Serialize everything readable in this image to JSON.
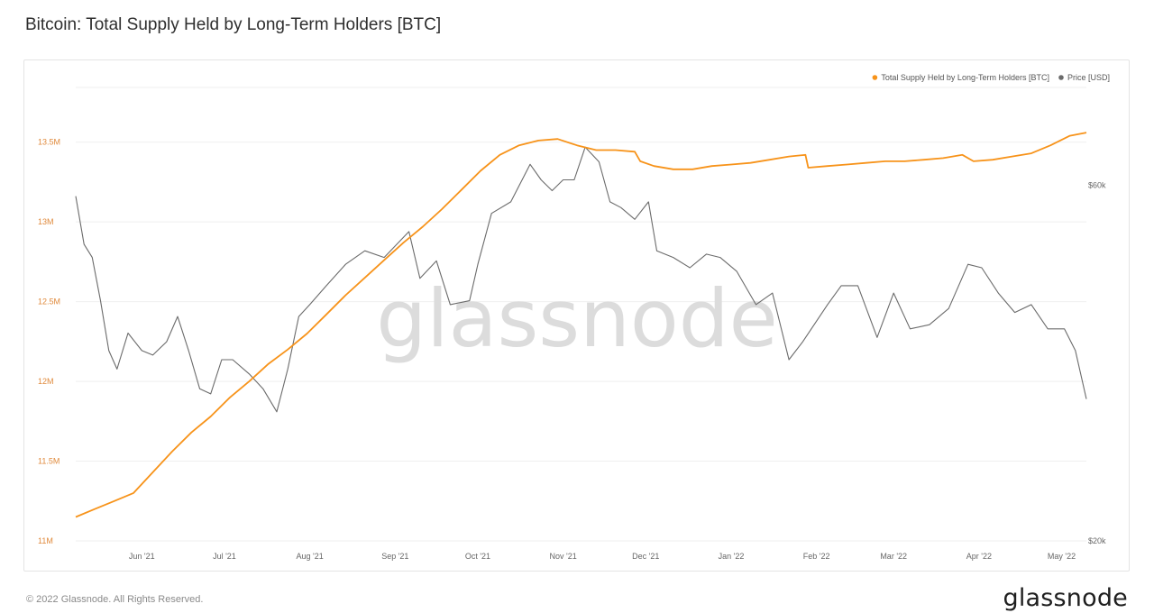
{
  "title": "Bitcoin: Total Supply Held by Long-Term Holders [BTC]",
  "copyright": "© 2022 Glassnode. All Rights Reserved.",
  "logo": "glassnode",
  "watermark": "glassnode",
  "colors": {
    "supply": "#f7931a",
    "price": "#6b6b6b",
    "grid": "#efefef",
    "left_axis": "#e08a3c",
    "right_axis": "#666666",
    "x_axis": "#666666"
  },
  "legend": {
    "placement": "top-right",
    "items": [
      {
        "label": "Total Supply Held by Long-Term Holders [BTC]",
        "color": "#f7931a"
      },
      {
        "label": "Price [USD]",
        "color": "#6b6b6b"
      }
    ]
  },
  "chart_data": {
    "type": "line",
    "x_range": [
      "2021-05-08",
      "2022-05-10"
    ],
    "x_ticks": [
      {
        "date": "2021-06-01",
        "label": "Jun '21"
      },
      {
        "date": "2021-07-01",
        "label": "Jul '21"
      },
      {
        "date": "2021-08-01",
        "label": "Aug '21"
      },
      {
        "date": "2021-09-01",
        "label": "Sep '21"
      },
      {
        "date": "2021-10-01",
        "label": "Oct '21"
      },
      {
        "date": "2021-11-01",
        "label": "Nov '21"
      },
      {
        "date": "2021-12-01",
        "label": "Dec '21"
      },
      {
        "date": "2022-01-01",
        "label": "Jan '22"
      },
      {
        "date": "2022-02-01",
        "label": "Feb '22"
      },
      {
        "date": "2022-03-01",
        "label": "Mar '22"
      },
      {
        "date": "2022-04-01",
        "label": "Apr '22"
      },
      {
        "date": "2022-05-01",
        "label": "May '22"
      }
    ],
    "y_left": {
      "range": [
        11000000,
        13600000
      ],
      "ticks": [
        {
          "value": 11000000,
          "label": "11M"
        },
        {
          "value": 11500000,
          "label": "11.5M"
        },
        {
          "value": 12000000,
          "label": "12M"
        },
        {
          "value": 12500000,
          "label": "12.5M"
        },
        {
          "value": 13000000,
          "label": "13M"
        },
        {
          "value": 13500000,
          "label": "13.5M"
        }
      ]
    },
    "y_right": {
      "scale": "log",
      "range": [
        20000,
        72000
      ],
      "ticks": [
        {
          "value": 20000,
          "label": "$20k"
        },
        {
          "value": 60000,
          "label": "$60k"
        }
      ]
    },
    "grid": true,
    "series": [
      {
        "name": "Total Supply Held by Long-Term Holders [BTC]",
        "axis": "left",
        "points": [
          [
            "2021-05-08",
            11150000
          ],
          [
            "2021-05-15",
            11200000
          ],
          [
            "2021-05-22",
            11250000
          ],
          [
            "2021-05-29",
            11300000
          ],
          [
            "2021-06-05",
            11430000
          ],
          [
            "2021-06-12",
            11560000
          ],
          [
            "2021-06-19",
            11680000
          ],
          [
            "2021-06-26",
            11780000
          ],
          [
            "2021-07-03",
            11900000
          ],
          [
            "2021-07-10",
            12000000
          ],
          [
            "2021-07-17",
            12110000
          ],
          [
            "2021-07-24",
            12200000
          ],
          [
            "2021-07-31",
            12300000
          ],
          [
            "2021-08-07",
            12420000
          ],
          [
            "2021-08-14",
            12540000
          ],
          [
            "2021-08-21",
            12650000
          ],
          [
            "2021-08-28",
            12760000
          ],
          [
            "2021-09-04",
            12870000
          ],
          [
            "2021-09-11",
            12970000
          ],
          [
            "2021-09-18",
            13080000
          ],
          [
            "2021-09-25",
            13200000
          ],
          [
            "2021-10-02",
            13320000
          ],
          [
            "2021-10-09",
            13420000
          ],
          [
            "2021-10-16",
            13480000
          ],
          [
            "2021-10-23",
            13510000
          ],
          [
            "2021-10-30",
            13520000
          ],
          [
            "2021-11-06",
            13480000
          ],
          [
            "2021-11-13",
            13450000
          ],
          [
            "2021-11-20",
            13450000
          ],
          [
            "2021-11-27",
            13440000
          ],
          [
            "2021-11-29",
            13380000
          ],
          [
            "2021-12-04",
            13350000
          ],
          [
            "2021-12-11",
            13330000
          ],
          [
            "2021-12-18",
            13330000
          ],
          [
            "2021-12-25",
            13350000
          ],
          [
            "2022-01-01",
            13360000
          ],
          [
            "2022-01-08",
            13370000
          ],
          [
            "2022-01-15",
            13390000
          ],
          [
            "2022-01-22",
            13410000
          ],
          [
            "2022-01-28",
            13420000
          ],
          [
            "2022-01-29",
            13340000
          ],
          [
            "2022-02-05",
            13350000
          ],
          [
            "2022-02-12",
            13360000
          ],
          [
            "2022-02-19",
            13370000
          ],
          [
            "2022-02-26",
            13380000
          ],
          [
            "2022-03-05",
            13380000
          ],
          [
            "2022-03-12",
            13390000
          ],
          [
            "2022-03-19",
            13400000
          ],
          [
            "2022-03-26",
            13420000
          ],
          [
            "2022-03-30",
            13380000
          ],
          [
            "2022-04-06",
            13390000
          ],
          [
            "2022-04-13",
            13410000
          ],
          [
            "2022-04-20",
            13430000
          ],
          [
            "2022-04-27",
            13480000
          ],
          [
            "2022-05-04",
            13540000
          ],
          [
            "2022-05-10",
            13560000
          ]
        ]
      },
      {
        "name": "Price [USD]",
        "axis": "right",
        "points": [
          [
            "2021-05-08",
            58000
          ],
          [
            "2021-05-11",
            50000
          ],
          [
            "2021-05-14",
            48000
          ],
          [
            "2021-05-17",
            42000
          ],
          [
            "2021-05-20",
            36000
          ],
          [
            "2021-05-23",
            34000
          ],
          [
            "2021-05-27",
            38000
          ],
          [
            "2021-06-01",
            36000
          ],
          [
            "2021-06-05",
            35500
          ],
          [
            "2021-06-10",
            37000
          ],
          [
            "2021-06-14",
            40000
          ],
          [
            "2021-06-18",
            36000
          ],
          [
            "2021-06-22",
            32000
          ],
          [
            "2021-06-26",
            31500
          ],
          [
            "2021-06-30",
            35000
          ],
          [
            "2021-07-04",
            35000
          ],
          [
            "2021-07-10",
            33500
          ],
          [
            "2021-07-15",
            32000
          ],
          [
            "2021-07-20",
            29800
          ],
          [
            "2021-07-24",
            34000
          ],
          [
            "2021-07-28",
            40000
          ],
          [
            "2021-08-01",
            41500
          ],
          [
            "2021-08-07",
            44000
          ],
          [
            "2021-08-14",
            47000
          ],
          [
            "2021-08-21",
            49000
          ],
          [
            "2021-08-28",
            48000
          ],
          [
            "2021-09-06",
            52000
          ],
          [
            "2021-09-10",
            45000
          ],
          [
            "2021-09-16",
            47500
          ],
          [
            "2021-09-21",
            41500
          ],
          [
            "2021-09-28",
            42000
          ],
          [
            "2021-10-01",
            47000
          ],
          [
            "2021-10-06",
            55000
          ],
          [
            "2021-10-13",
            57000
          ],
          [
            "2021-10-20",
            64000
          ],
          [
            "2021-10-24",
            61000
          ],
          [
            "2021-10-28",
            59000
          ],
          [
            "2021-11-01",
            61000
          ],
          [
            "2021-11-05",
            61000
          ],
          [
            "2021-11-09",
            67500
          ],
          [
            "2021-11-14",
            64500
          ],
          [
            "2021-11-18",
            57000
          ],
          [
            "2021-11-22",
            56000
          ],
          [
            "2021-11-27",
            54000
          ],
          [
            "2021-12-02",
            57000
          ],
          [
            "2021-12-05",
            49000
          ],
          [
            "2021-12-11",
            48000
          ],
          [
            "2021-12-17",
            46500
          ],
          [
            "2021-12-23",
            48500
          ],
          [
            "2021-12-28",
            48000
          ],
          [
            "2022-01-03",
            46000
          ],
          [
            "2022-01-10",
            41500
          ],
          [
            "2022-01-16",
            43000
          ],
          [
            "2022-01-22",
            35000
          ],
          [
            "2022-01-27",
            37000
          ],
          [
            "2022-02-05",
            41500
          ],
          [
            "2022-02-10",
            44000
          ],
          [
            "2022-02-16",
            44000
          ],
          [
            "2022-02-23",
            37500
          ],
          [
            "2022-03-01",
            43000
          ],
          [
            "2022-03-07",
            38500
          ],
          [
            "2022-03-14",
            39000
          ],
          [
            "2022-03-21",
            41000
          ],
          [
            "2022-03-28",
            47000
          ],
          [
            "2022-04-02",
            46500
          ],
          [
            "2022-04-08",
            43000
          ],
          [
            "2022-04-14",
            40500
          ],
          [
            "2022-04-20",
            41500
          ],
          [
            "2022-04-26",
            38500
          ],
          [
            "2022-05-02",
            38500
          ],
          [
            "2022-05-06",
            36000
          ],
          [
            "2022-05-10",
            31000
          ]
        ]
      }
    ]
  }
}
